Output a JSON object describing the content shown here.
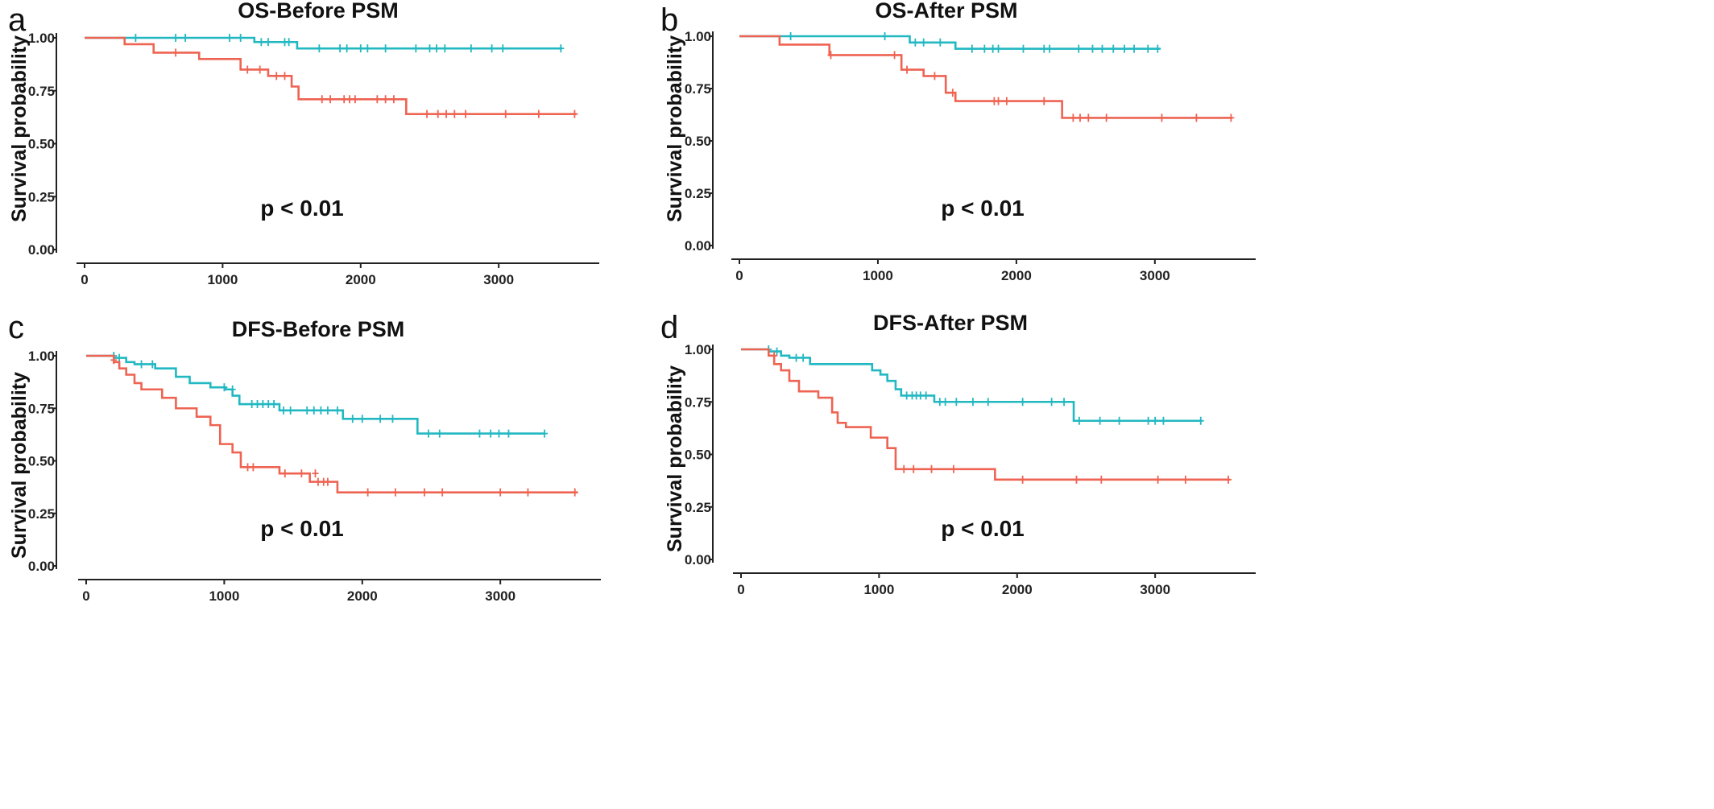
{
  "figure": {
    "colors": {
      "group1": "#22B8C2",
      "group2": "#EE6352",
      "axis": "#222222"
    }
  },
  "chart_data": [
    {
      "type": "line",
      "panel_label": "a",
      "title": "OS-Before PSM",
      "xlabel": "",
      "ylabel": "Survival probability",
      "annotation": "p < 0.01",
      "xlim": [
        0,
        3600
      ],
      "ylim": [
        0,
        1
      ],
      "xticks": [
        "0",
        "1000",
        "2000",
        "3000"
      ],
      "yticks": [
        "0.00",
        "0.25",
        "0.50",
        "0.75",
        "1.00"
      ],
      "grid": false,
      "series": [
        {
          "color": "#22B8C2",
          "x": [
            0,
            1230,
            1540,
            3460
          ],
          "y": [
            1.0,
            0.98,
            0.95,
            0.95
          ],
          "censors": [
            [
              370,
              1.0
            ],
            [
              660,
              1.0
            ],
            [
              730,
              1.0
            ],
            [
              1050,
              1.0
            ],
            [
              1130,
              1.0
            ],
            [
              1280,
              0.98
            ],
            [
              1330,
              0.98
            ],
            [
              1450,
              0.98
            ],
            [
              1480,
              0.98
            ],
            [
              1700,
              0.95
            ],
            [
              1850,
              0.95
            ],
            [
              1900,
              0.95
            ],
            [
              2000,
              0.95
            ],
            [
              2050,
              0.95
            ],
            [
              2180,
              0.95
            ],
            [
              2400,
              0.95
            ],
            [
              2500,
              0.95
            ],
            [
              2550,
              0.95
            ],
            [
              2610,
              0.95
            ],
            [
              2800,
              0.95
            ],
            [
              2950,
              0.95
            ],
            [
              3030,
              0.95
            ],
            [
              3450,
              0.95
            ]
          ]
        },
        {
          "color": "#EE6352",
          "x": [
            0,
            290,
            500,
            830,
            1130,
            1330,
            1500,
            1550,
            2330,
            3560
          ],
          "y": [
            1.0,
            0.97,
            0.93,
            0.9,
            0.85,
            0.82,
            0.77,
            0.71,
            0.64,
            0.64
          ],
          "censors": [
            [
              660,
              0.93
            ],
            [
              1180,
              0.85
            ],
            [
              1270,
              0.85
            ],
            [
              1390,
              0.82
            ],
            [
              1450,
              0.82
            ],
            [
              1720,
              0.71
            ],
            [
              1780,
              0.71
            ],
            [
              1880,
              0.71
            ],
            [
              1920,
              0.71
            ],
            [
              1960,
              0.71
            ],
            [
              2120,
              0.71
            ],
            [
              2180,
              0.71
            ],
            [
              2240,
              0.71
            ],
            [
              2480,
              0.64
            ],
            [
              2560,
              0.64
            ],
            [
              2620,
              0.64
            ],
            [
              2680,
              0.64
            ],
            [
              2760,
              0.64
            ],
            [
              3050,
              0.64
            ],
            [
              3290,
              0.64
            ],
            [
              3550,
              0.64
            ]
          ]
        }
      ]
    },
    {
      "type": "line",
      "panel_label": "b",
      "title": "OS-After PSM",
      "xlabel": "",
      "ylabel": "Survival probability",
      "annotation": "p < 0.01",
      "xlim": [
        0,
        3600
      ],
      "ylim": [
        0,
        1
      ],
      "xticks": [
        "0",
        "1000",
        "2000",
        "3000"
      ],
      "yticks": [
        "0.00",
        "0.25",
        "0.50",
        "0.75",
        "1.00"
      ],
      "grid": false,
      "series": [
        {
          "color": "#22B8C2",
          "x": [
            0,
            1230,
            1560,
            3040
          ],
          "y": [
            1.0,
            0.97,
            0.94,
            0.94
          ],
          "censors": [
            [
              370,
              1.0
            ],
            [
              1050,
              1.0
            ],
            [
              1270,
              0.97
            ],
            [
              1330,
              0.97
            ],
            [
              1450,
              0.97
            ],
            [
              1680,
              0.94
            ],
            [
              1770,
              0.94
            ],
            [
              1830,
              0.94
            ],
            [
              1870,
              0.94
            ],
            [
              2050,
              0.94
            ],
            [
              2200,
              0.94
            ],
            [
              2240,
              0.94
            ],
            [
              2450,
              0.94
            ],
            [
              2550,
              0.94
            ],
            [
              2620,
              0.94
            ],
            [
              2700,
              0.94
            ],
            [
              2780,
              0.94
            ],
            [
              2850,
              0.94
            ],
            [
              2950,
              0.94
            ],
            [
              3020,
              0.94
            ]
          ]
        },
        {
          "color": "#EE6352",
          "x": [
            0,
            290,
            650,
            1170,
            1330,
            1490,
            1560,
            2330,
            3560
          ],
          "y": [
            1.0,
            0.96,
            0.91,
            0.84,
            0.81,
            0.73,
            0.69,
            0.61,
            0.61
          ],
          "censors": [
            [
              660,
              0.91
            ],
            [
              1120,
              0.91
            ],
            [
              1210,
              0.84
            ],
            [
              1410,
              0.81
            ],
            [
              1540,
              0.73
            ],
            [
              1840,
              0.69
            ],
            [
              1870,
              0.69
            ],
            [
              1930,
              0.69
            ],
            [
              2200,
              0.69
            ],
            [
              2410,
              0.61
            ],
            [
              2460,
              0.61
            ],
            [
              2520,
              0.61
            ],
            [
              2650,
              0.61
            ],
            [
              3050,
              0.61
            ],
            [
              3300,
              0.61
            ],
            [
              3550,
              0.61
            ]
          ]
        }
      ]
    },
    {
      "type": "line",
      "panel_label": "c",
      "title": "DFS-Before PSM",
      "xlabel": "",
      "ylabel": "Survival probability",
      "annotation": "p < 0.01",
      "xlim": [
        0,
        3600
      ],
      "ylim": [
        0,
        1
      ],
      "xticks": [
        "0",
        "1000",
        "2000",
        "3000"
      ],
      "yticks": [
        "0.00",
        "0.25",
        "0.50",
        "0.75",
        "1.00"
      ],
      "grid": false,
      "series": [
        {
          "color": "#22B8C2",
          "x": [
            0,
            200,
            290,
            350,
            500,
            650,
            750,
            900,
            1010,
            1060,
            1110,
            1400,
            1860,
            2400,
            3320
          ],
          "y": [
            1.0,
            0.99,
            0.97,
            0.96,
            0.94,
            0.9,
            0.87,
            0.85,
            0.84,
            0.81,
            0.77,
            0.74,
            0.7,
            0.63,
            0.63
          ],
          "censors": [
            [
              200,
              1.0
            ],
            [
              240,
              0.99
            ],
            [
              400,
              0.96
            ],
            [
              480,
              0.96
            ],
            [
              1000,
              0.85
            ],
            [
              1060,
              0.84
            ],
            [
              1200,
              0.77
            ],
            [
              1240,
              0.77
            ],
            [
              1280,
              0.77
            ],
            [
              1320,
              0.77
            ],
            [
              1360,
              0.77
            ],
            [
              1430,
              0.74
            ],
            [
              1480,
              0.74
            ],
            [
              1600,
              0.74
            ],
            [
              1650,
              0.74
            ],
            [
              1700,
              0.74
            ],
            [
              1750,
              0.74
            ],
            [
              1820,
              0.74
            ],
            [
              1930,
              0.7
            ],
            [
              2000,
              0.7
            ],
            [
              2130,
              0.7
            ],
            [
              2220,
              0.7
            ],
            [
              2480,
              0.63
            ],
            [
              2560,
              0.63
            ],
            [
              2850,
              0.63
            ],
            [
              2930,
              0.63
            ],
            [
              2990,
              0.63
            ],
            [
              3060,
              0.63
            ],
            [
              3320,
              0.63
            ]
          ]
        },
        {
          "color": "#EE6352",
          "x": [
            0,
            200,
            240,
            290,
            350,
            400,
            550,
            650,
            800,
            900,
            970,
            1060,
            1120,
            1400,
            1620,
            1820,
            3560
          ],
          "y": [
            1.0,
            0.97,
            0.94,
            0.91,
            0.87,
            0.84,
            0.8,
            0.75,
            0.71,
            0.67,
            0.58,
            0.54,
            0.47,
            0.44,
            0.4,
            0.35,
            0.35
          ],
          "censors": [
            [
              200,
              0.98
            ],
            [
              1170,
              0.47
            ],
            [
              1210,
              0.47
            ],
            [
              1440,
              0.44
            ],
            [
              1560,
              0.44
            ],
            [
              1660,
              0.44
            ],
            [
              1680,
              0.4
            ],
            [
              1720,
              0.4
            ],
            [
              1750,
              0.4
            ],
            [
              2040,
              0.35
            ],
            [
              2240,
              0.35
            ],
            [
              2450,
              0.35
            ],
            [
              2580,
              0.35
            ],
            [
              3000,
              0.35
            ],
            [
              3200,
              0.35
            ],
            [
              3540,
              0.35
            ]
          ]
        }
      ]
    },
    {
      "type": "line",
      "panel_label": "d",
      "title": "DFS-After PSM",
      "xlabel": "",
      "ylabel": "Survival probability",
      "annotation": "p < 0.01",
      "xlim": [
        0,
        3600
      ],
      "ylim": [
        0,
        1
      ],
      "xticks": [
        "0",
        "1000",
        "2000",
        "3000"
      ],
      "yticks": [
        "0.00",
        "0.25",
        "0.50",
        "0.75",
        "1.00"
      ],
      "grid": false,
      "series": [
        {
          "color": "#22B8C2",
          "x": [
            0,
            200,
            290,
            350,
            500,
            800,
            950,
            1010,
            1060,
            1120,
            1160,
            1400,
            2410,
            3340
          ],
          "y": [
            1.0,
            0.99,
            0.97,
            0.96,
            0.93,
            0.93,
            0.9,
            0.88,
            0.85,
            0.81,
            0.78,
            0.75,
            0.66,
            0.66
          ],
          "censors": [
            [
              200,
              1.0
            ],
            [
              260,
              0.99
            ],
            [
              400,
              0.96
            ],
            [
              450,
              0.96
            ],
            [
              1200,
              0.78
            ],
            [
              1240,
              0.78
            ],
            [
              1270,
              0.78
            ],
            [
              1300,
              0.78
            ],
            [
              1340,
              0.78
            ],
            [
              1440,
              0.75
            ],
            [
              1480,
              0.75
            ],
            [
              1560,
              0.75
            ],
            [
              1680,
              0.75
            ],
            [
              1790,
              0.75
            ],
            [
              2040,
              0.75
            ],
            [
              2250,
              0.75
            ],
            [
              2340,
              0.75
            ],
            [
              2450,
              0.66
            ],
            [
              2600,
              0.66
            ],
            [
              2740,
              0.66
            ],
            [
              2950,
              0.66
            ],
            [
              3000,
              0.66
            ],
            [
              3060,
              0.66
            ],
            [
              3330,
              0.66
            ]
          ]
        },
        {
          "color": "#EE6352",
          "x": [
            0,
            200,
            240,
            290,
            350,
            420,
            560,
            660,
            700,
            760,
            940,
            1060,
            1120,
            1840,
            3540
          ],
          "y": [
            1.0,
            0.97,
            0.93,
            0.9,
            0.85,
            0.8,
            0.77,
            0.7,
            0.65,
            0.63,
            0.58,
            0.53,
            0.43,
            0.38,
            0.38
          ],
          "censors": [
            [
              240,
              0.97
            ],
            [
              1180,
              0.43
            ],
            [
              1250,
              0.43
            ],
            [
              1380,
              0.43
            ],
            [
              1540,
              0.43
            ],
            [
              2040,
              0.38
            ],
            [
              2430,
              0.38
            ],
            [
              2610,
              0.38
            ],
            [
              3020,
              0.38
            ],
            [
              3220,
              0.38
            ],
            [
              3530,
              0.38
            ]
          ]
        }
      ]
    }
  ]
}
